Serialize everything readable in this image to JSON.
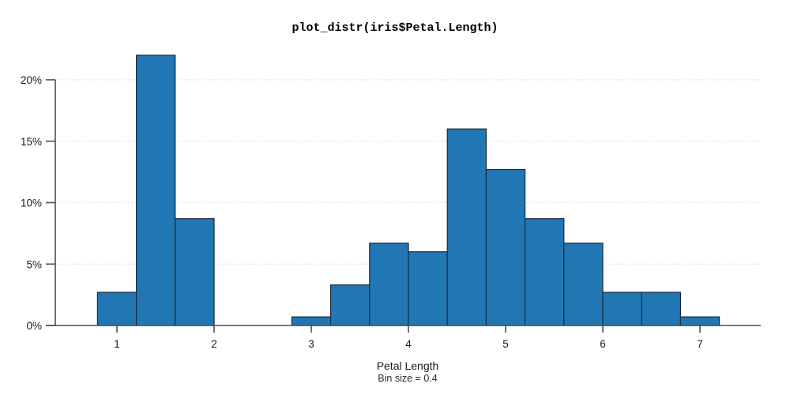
{
  "chart_data": {
    "type": "bar",
    "subtype": "histogram",
    "title": "plot_distr(iris$Petal.Length)",
    "xlabel": "Petal Length",
    "ylabel": "",
    "annotation": "Bin size = 0.4",
    "bin_size": 0.4,
    "grid": "horizontal dotted",
    "legend": "none",
    "xlim": [
      0.37,
      7.63
    ],
    "ylim": [
      0,
      22.5
    ],
    "y_unit": "percent",
    "x_ticks": [
      {
        "label": "1",
        "value": 1
      },
      {
        "label": "2",
        "value": 2
      },
      {
        "label": "3",
        "value": 3
      },
      {
        "label": "4",
        "value": 4
      },
      {
        "label": "5",
        "value": 5
      },
      {
        "label": "6",
        "value": 6
      },
      {
        "label": "7",
        "value": 7
      }
    ],
    "y_ticks": [
      {
        "label": "0%",
        "value": 0
      },
      {
        "label": "5%",
        "value": 5
      },
      {
        "label": "10%",
        "value": 10
      },
      {
        "label": "15%",
        "value": 15
      },
      {
        "label": "20%",
        "value": 20
      }
    ],
    "bins": [
      {
        "start": 0.8,
        "end": 1.2,
        "percent": 2.7
      },
      {
        "start": 1.2,
        "end": 1.6,
        "percent": 22.0
      },
      {
        "start": 1.6,
        "end": 2.0,
        "percent": 8.7
      },
      {
        "start": 2.0,
        "end": 2.4,
        "percent": 0.0
      },
      {
        "start": 2.4,
        "end": 2.8,
        "percent": 0.0
      },
      {
        "start": 2.8,
        "end": 3.2,
        "percent": 0.7
      },
      {
        "start": 3.2,
        "end": 3.6,
        "percent": 3.3
      },
      {
        "start": 3.6,
        "end": 4.0,
        "percent": 6.7
      },
      {
        "start": 4.0,
        "end": 4.4,
        "percent": 6.0
      },
      {
        "start": 4.4,
        "end": 4.8,
        "percent": 16.0
      },
      {
        "start": 4.8,
        "end": 5.2,
        "percent": 12.7
      },
      {
        "start": 5.2,
        "end": 5.6,
        "percent": 8.7
      },
      {
        "start": 5.6,
        "end": 6.0,
        "percent": 6.7
      },
      {
        "start": 6.0,
        "end": 6.4,
        "percent": 2.7
      },
      {
        "start": 6.4,
        "end": 6.8,
        "percent": 2.7
      },
      {
        "start": 6.8,
        "end": 7.2,
        "percent": 0.7
      }
    ],
    "colors": {
      "bar_fill": "#2077b4",
      "bar_edge": "#1c2b3a",
      "grid": "#d2d2d2",
      "axis": "#4f4f4f",
      "text": "#1a1a1a",
      "background": "#ffffff"
    }
  }
}
